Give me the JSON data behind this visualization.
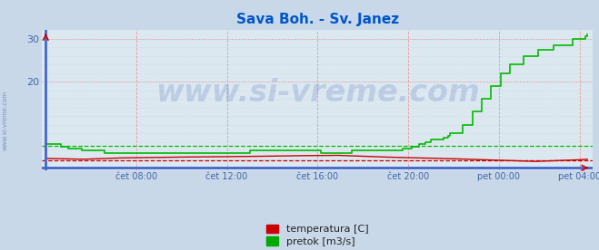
{
  "title": "Sava Boh. - Sv. Janez",
  "title_color": "#0055cc",
  "title_fontsize": 11,
  "fig_bg_color": "#c8d8e8",
  "plot_bg_color": "#dce8f0",
  "xlim": [
    0,
    287
  ],
  "ylim": [
    0,
    32
  ],
  "yticks": [
    20,
    30
  ],
  "xlabel_ticks": [
    "čet 08:00",
    "čet 12:00",
    "čet 16:00",
    "čet 20:00",
    "pet 00:00",
    "pet 04:00"
  ],
  "xlabel_tick_positions": [
    48,
    96,
    144,
    192,
    240,
    283
  ],
  "grid_color_major": "#ee8888",
  "axis_color": "#5577cc",
  "tick_color": "#4466aa",
  "watermark": "www.si-vreme.com",
  "watermark_color": "#1133aa",
  "watermark_alpha": 0.15,
  "watermark_fontsize": 24,
  "legend_labels": [
    "temperatura [C]",
    "pretok [m3/s]"
  ],
  "legend_colors": [
    "#cc0000",
    "#00aa00"
  ],
  "avg_temp": 1.8,
  "avg_flow": 5.2,
  "temp_color": "#cc0000",
  "flow_color": "#00bb00",
  "blue_line_color": "#4466cc"
}
